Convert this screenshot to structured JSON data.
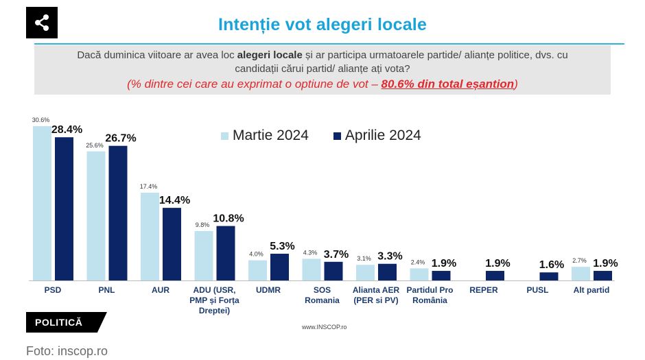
{
  "title": "Intenție vot alegeri locale",
  "icons": {
    "share": "share-icon"
  },
  "question": {
    "line1_pre": "Dacă duminica viitoare ar avea loc ",
    "line1_bold": "alegeri locale",
    "line1_post": " și ar participa urmatoarele partide/ alianțe politice, dvs. cu",
    "line2": "candidații cărui partid/ alianțe ați vota?",
    "line3_pre": "(% dintre cei care au exprimat o optiune de vot – ",
    "line3_bold": "80.6% din total eșantion",
    "line3_post": ")"
  },
  "legend": {
    "march": "Martie 2024",
    "april": "Aprilie 2024"
  },
  "colors": {
    "march": "#bfe2ee",
    "april": "#0c2566",
    "title": "#1aa3d8",
    "highlight": "#e0282d"
  },
  "chart_data": {
    "type": "bar",
    "categories": [
      [
        "PSD"
      ],
      [
        "PNL"
      ],
      [
        "AUR"
      ],
      [
        "ADU (USR,",
        "PMP și Forța",
        "Dreptei)"
      ],
      [
        "UDMR"
      ],
      [
        "SOS",
        "Romania"
      ],
      [
        "Alianta AER",
        "(PER si PV)"
      ],
      [
        "Partidul Pro",
        "România"
      ],
      [
        "REPER"
      ],
      [
        "PUSL"
      ],
      [
        "Alt partid"
      ]
    ],
    "series": [
      {
        "name": "Martie 2024",
        "values": [
          30.6,
          25.6,
          17.4,
          9.8,
          4.0,
          4.3,
          3.1,
          2.4,
          null,
          null,
          2.7
        ],
        "labels": [
          "30.6%",
          "25.6%",
          "17.4%",
          "9.8%",
          "4.0%",
          "4.3%",
          "3.1%",
          "2.4%",
          "",
          "",
          "2.7%"
        ]
      },
      {
        "name": "Aprilie 2024",
        "values": [
          28.4,
          26.7,
          14.4,
          10.8,
          5.3,
          3.7,
          3.3,
          1.9,
          1.9,
          1.6,
          1.9
        ],
        "labels": [
          "28.4%",
          "26.7%",
          "14.4%",
          "10.8%",
          "5.3%",
          "3.7%",
          "3.3%",
          "1.9%",
          "1.9%",
          "1.6%",
          "1.9%"
        ]
      }
    ],
    "ylim": [
      0,
      30.6
    ]
  },
  "tag": "POLITICĂ",
  "source": "www.INSCOP.ro",
  "photo_credit": "Foto: inscop.ro"
}
